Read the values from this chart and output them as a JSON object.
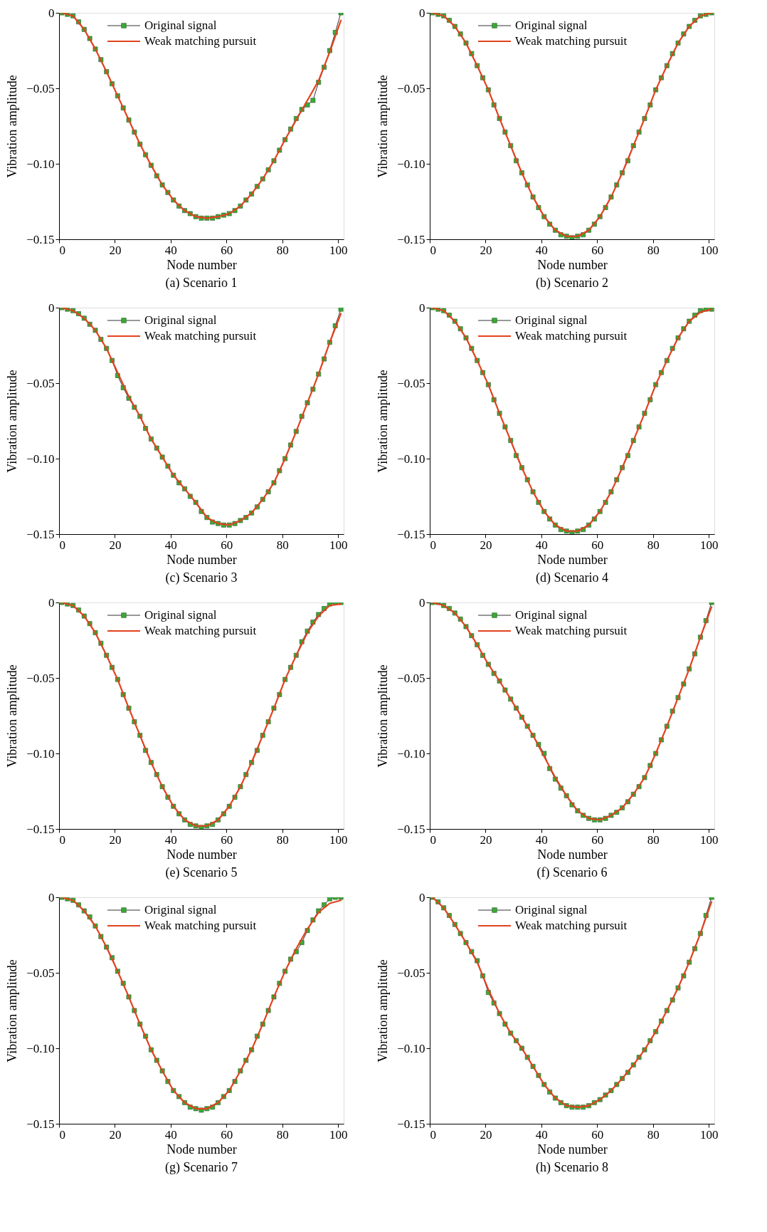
{
  "chart_data": [
    {
      "type": "line",
      "title": "(a) Scenario 1",
      "xlabel": "Node number",
      "ylabel": "Vibration amplitude",
      "xlim": [
        0,
        102
      ],
      "xticks": [
        0,
        20,
        40,
        60,
        80,
        100
      ],
      "ylim": [
        -0.15,
        0
      ],
      "yticks": [
        {
          "value": -0.15,
          "label": "−0.15"
        },
        {
          "value": -0.1,
          "label": "−0.10"
        },
        {
          "value": -0.05,
          "label": "−0.05"
        },
        {
          "value": 0,
          "label": "0"
        }
      ],
      "legend": "top",
      "grid": false,
      "marker": "square",
      "series": [
        {
          "name": "Original signal",
          "color": "#3aaa35",
          "x": [
            1,
            3,
            5,
            7,
            9,
            11,
            13,
            15,
            17,
            19,
            21,
            23,
            25,
            27,
            29,
            31,
            33,
            35,
            37,
            39,
            41,
            43,
            45,
            47,
            49,
            51,
            53,
            55,
            57,
            59,
            61,
            63,
            65,
            67,
            69,
            71,
            73,
            75,
            77,
            79,
            81,
            83,
            85,
            87,
            89,
            91,
            93,
            95,
            97,
            99,
            101
          ],
          "values": [
            0,
            -0.001,
            -0.002,
            -0.006,
            -0.011,
            -0.017,
            -0.024,
            -0.031,
            -0.039,
            -0.047,
            -0.055,
            -0.063,
            -0.071,
            -0.079,
            -0.087,
            -0.094,
            -0.101,
            -0.108,
            -0.114,
            -0.119,
            -0.124,
            -0.128,
            -0.131,
            -0.133,
            -0.135,
            -0.136,
            -0.136,
            -0.136,
            -0.135,
            -0.134,
            -0.133,
            -0.131,
            -0.128,
            -0.124,
            -0.12,
            -0.115,
            -0.11,
            -0.104,
            -0.098,
            -0.091,
            -0.084,
            -0.077,
            -0.07,
            -0.064,
            -0.061,
            -0.058,
            -0.046,
            -0.036,
            -0.025,
            -0.013,
            0
          ]
        },
        {
          "name": "Weak matching pursuit",
          "color": "#e2431e",
          "marker": "none",
          "x": [
            1,
            5,
            9,
            13,
            17,
            21,
            25,
            29,
            33,
            37,
            41,
            45,
            49,
            53,
            57,
            61,
            65,
            69,
            73,
            77,
            81,
            85,
            89,
            93,
            97,
            101
          ],
          "values": [
            0,
            -0.002,
            -0.011,
            -0.024,
            -0.039,
            -0.055,
            -0.071,
            -0.087,
            -0.101,
            -0.114,
            -0.124,
            -0.131,
            -0.135,
            -0.136,
            -0.135,
            -0.133,
            -0.128,
            -0.12,
            -0.11,
            -0.098,
            -0.084,
            -0.071,
            -0.058,
            -0.045,
            -0.026,
            -0.005
          ]
        }
      ]
    },
    {
      "type": "line",
      "title": "(b) Scenario 2",
      "xlabel": "Node number",
      "ylabel": "Vibration amplitude",
      "xlim": [
        0,
        102
      ],
      "xticks": [
        0,
        20,
        40,
        60,
        80,
        100
      ],
      "ylim": [
        -0.15,
        0
      ],
      "yticks": [
        {
          "value": -0.15,
          "label": "−0.15"
        },
        {
          "value": -0.1,
          "label": "−0.10"
        },
        {
          "value": -0.05,
          "label": "−0.05"
        },
        {
          "value": 0,
          "label": "0"
        }
      ],
      "legend": "top",
      "grid": false,
      "marker": "square",
      "series": [
        {
          "name": "Original signal",
          "color": "#3aaa35",
          "x": [
            1,
            3,
            5,
            7,
            9,
            11,
            13,
            15,
            17,
            19,
            21,
            23,
            25,
            27,
            29,
            31,
            33,
            35,
            37,
            39,
            41,
            43,
            45,
            47,
            49,
            51,
            53,
            55,
            57,
            59,
            61,
            63,
            65,
            67,
            69,
            71,
            73,
            75,
            77,
            79,
            81,
            83,
            85,
            87,
            89,
            91,
            93,
            95,
            97,
            99,
            101
          ],
          "values": [
            0,
            -0.001,
            -0.002,
            -0.005,
            -0.009,
            -0.014,
            -0.02,
            -0.027,
            -0.035,
            -0.043,
            -0.051,
            -0.061,
            -0.07,
            -0.079,
            -0.088,
            -0.098,
            -0.106,
            -0.114,
            -0.122,
            -0.129,
            -0.135,
            -0.14,
            -0.144,
            -0.147,
            -0.148,
            -0.149,
            -0.148,
            -0.147,
            -0.144,
            -0.14,
            -0.135,
            -0.129,
            -0.122,
            -0.114,
            -0.106,
            -0.098,
            -0.088,
            -0.079,
            -0.07,
            -0.061,
            -0.051,
            -0.043,
            -0.035,
            -0.027,
            -0.02,
            -0.014,
            -0.009,
            -0.005,
            -0.002,
            -0.001,
            0
          ]
        },
        {
          "name": "Weak matching pursuit",
          "color": "#e2431e",
          "marker": "none",
          "x": [
            1,
            5,
            9,
            13,
            17,
            21,
            25,
            29,
            33,
            37,
            41,
            45,
            49,
            53,
            57,
            61,
            65,
            69,
            73,
            77,
            81,
            85,
            89,
            93,
            97,
            101
          ],
          "values": [
            0,
            -0.002,
            -0.009,
            -0.02,
            -0.035,
            -0.051,
            -0.07,
            -0.088,
            -0.106,
            -0.122,
            -0.135,
            -0.144,
            -0.148,
            -0.148,
            -0.144,
            -0.135,
            -0.122,
            -0.106,
            -0.088,
            -0.07,
            -0.051,
            -0.035,
            -0.02,
            -0.009,
            -0.002,
            0
          ]
        }
      ]
    },
    {
      "type": "line",
      "title": "(c) Scenario 3",
      "xlabel": "Node number",
      "ylabel": "Vibration amplitude",
      "xlim": [
        0,
        102
      ],
      "xticks": [
        0,
        20,
        40,
        60,
        80,
        100
      ],
      "ylim": [
        -0.15,
        0
      ],
      "yticks": [
        {
          "value": -0.15,
          "label": "−0.15"
        },
        {
          "value": -0.1,
          "label": "−0.10"
        },
        {
          "value": -0.05,
          "label": "−0.05"
        },
        {
          "value": 0,
          "label": "0"
        }
      ],
      "legend": "top",
      "grid": false,
      "marker": "square",
      "series": [
        {
          "name": "Original signal",
          "color": "#3aaa35",
          "x": [
            1,
            3,
            5,
            7,
            9,
            11,
            13,
            15,
            17,
            19,
            21,
            23,
            25,
            27,
            29,
            31,
            33,
            35,
            37,
            39,
            41,
            43,
            45,
            47,
            49,
            51,
            53,
            55,
            57,
            59,
            61,
            63,
            65,
            67,
            69,
            71,
            73,
            75,
            77,
            79,
            81,
            83,
            85,
            87,
            89,
            91,
            93,
            95,
            97,
            99,
            101
          ],
          "values": [
            0,
            -0.001,
            -0.002,
            -0.004,
            -0.007,
            -0.011,
            -0.015,
            -0.021,
            -0.027,
            -0.035,
            -0.045,
            -0.053,
            -0.06,
            -0.066,
            -0.072,
            -0.08,
            -0.087,
            -0.093,
            -0.099,
            -0.105,
            -0.111,
            -0.116,
            -0.12,
            -0.125,
            -0.129,
            -0.135,
            -0.139,
            -0.142,
            -0.143,
            -0.144,
            -0.144,
            -0.143,
            -0.141,
            -0.139,
            -0.136,
            -0.132,
            -0.127,
            -0.122,
            -0.116,
            -0.108,
            -0.1,
            -0.091,
            -0.082,
            -0.072,
            -0.063,
            -0.054,
            -0.044,
            -0.034,
            -0.023,
            -0.012,
            -0.001
          ]
        },
        {
          "name": "Weak matching pursuit",
          "color": "#e2431e",
          "marker": "none",
          "x": [
            1,
            5,
            9,
            13,
            17,
            21,
            25,
            29,
            33,
            37,
            41,
            45,
            49,
            53,
            57,
            61,
            65,
            69,
            73,
            77,
            81,
            85,
            89,
            93,
            97,
            101
          ],
          "values": [
            0,
            -0.002,
            -0.007,
            -0.015,
            -0.027,
            -0.043,
            -0.059,
            -0.072,
            -0.087,
            -0.099,
            -0.111,
            -0.12,
            -0.129,
            -0.139,
            -0.143,
            -0.144,
            -0.141,
            -0.136,
            -0.127,
            -0.116,
            -0.1,
            -0.082,
            -0.063,
            -0.044,
            -0.023,
            -0.004
          ]
        }
      ]
    },
    {
      "type": "line",
      "title": "(d) Scenario 4",
      "xlabel": "Node number",
      "ylabel": "Vibration amplitude",
      "xlim": [
        0,
        102
      ],
      "xticks": [
        0,
        20,
        40,
        60,
        80,
        100
      ],
      "ylim": [
        -0.15,
        0
      ],
      "yticks": [
        {
          "value": -0.15,
          "label": "−0.15"
        },
        {
          "value": -0.1,
          "label": "−0.10"
        },
        {
          "value": -0.05,
          "label": "−0.05"
        },
        {
          "value": 0,
          "label": "0"
        }
      ],
      "legend": "top",
      "grid": false,
      "marker": "square",
      "series": [
        {
          "name": "Original signal",
          "color": "#3aaa35",
          "x": [
            1,
            3,
            5,
            7,
            9,
            11,
            13,
            15,
            17,
            19,
            21,
            23,
            25,
            27,
            29,
            31,
            33,
            35,
            37,
            39,
            41,
            43,
            45,
            47,
            49,
            51,
            53,
            55,
            57,
            59,
            61,
            63,
            65,
            67,
            69,
            71,
            73,
            75,
            77,
            79,
            81,
            83,
            85,
            87,
            89,
            91,
            93,
            95,
            97,
            99,
            101
          ],
          "values": [
            0,
            -0.001,
            -0.002,
            -0.005,
            -0.009,
            -0.014,
            -0.02,
            -0.027,
            -0.035,
            -0.043,
            -0.051,
            -0.061,
            -0.07,
            -0.079,
            -0.088,
            -0.098,
            -0.106,
            -0.114,
            -0.122,
            -0.129,
            -0.135,
            -0.14,
            -0.144,
            -0.147,
            -0.148,
            -0.149,
            -0.148,
            -0.147,
            -0.144,
            -0.14,
            -0.135,
            -0.129,
            -0.122,
            -0.114,
            -0.106,
            -0.098,
            -0.088,
            -0.079,
            -0.07,
            -0.061,
            -0.051,
            -0.043,
            -0.035,
            -0.027,
            -0.02,
            -0.014,
            -0.009,
            -0.005,
            -0.002,
            -0.001,
            -0.001
          ]
        },
        {
          "name": "Weak matching pursuit",
          "color": "#e2431e",
          "marker": "none",
          "x": [
            1,
            5,
            9,
            13,
            17,
            21,
            25,
            29,
            33,
            37,
            41,
            45,
            49,
            53,
            57,
            61,
            65,
            69,
            73,
            77,
            81,
            85,
            89,
            93,
            97,
            101
          ],
          "values": [
            0,
            -0.002,
            -0.009,
            -0.02,
            -0.035,
            -0.051,
            -0.07,
            -0.088,
            -0.106,
            -0.122,
            -0.135,
            -0.144,
            -0.148,
            -0.148,
            -0.144,
            -0.135,
            -0.122,
            -0.106,
            -0.088,
            -0.07,
            -0.051,
            -0.035,
            -0.02,
            -0.009,
            -0.003,
            -0.001
          ]
        }
      ]
    },
    {
      "type": "line",
      "title": "(e) Scenario 5",
      "xlabel": "Node number",
      "ylabel": "Vibration amplitude",
      "xlim": [
        0,
        102
      ],
      "xticks": [
        0,
        20,
        40,
        60,
        80,
        100
      ],
      "ylim": [
        -0.15,
        0
      ],
      "yticks": [
        {
          "value": -0.15,
          "label": "−0.15"
        },
        {
          "value": -0.1,
          "label": "−0.10"
        },
        {
          "value": -0.05,
          "label": "−0.05"
        },
        {
          "value": 0,
          "label": "0"
        }
      ],
      "legend": "top",
      "grid": false,
      "marker": "square",
      "series": [
        {
          "name": "Original signal",
          "color": "#3aaa35",
          "x": [
            1,
            3,
            5,
            7,
            9,
            11,
            13,
            15,
            17,
            19,
            21,
            23,
            25,
            27,
            29,
            31,
            33,
            35,
            37,
            39,
            41,
            43,
            45,
            47,
            49,
            51,
            53,
            55,
            57,
            59,
            61,
            63,
            65,
            67,
            69,
            71,
            73,
            75,
            77,
            79,
            81,
            83,
            85,
            87,
            89,
            91,
            93,
            95,
            97,
            99,
            101
          ],
          "values": [
            0,
            -0.001,
            -0.002,
            -0.005,
            -0.009,
            -0.014,
            -0.02,
            -0.027,
            -0.035,
            -0.043,
            -0.051,
            -0.061,
            -0.07,
            -0.079,
            -0.088,
            -0.098,
            -0.106,
            -0.114,
            -0.122,
            -0.129,
            -0.135,
            -0.14,
            -0.144,
            -0.147,
            -0.148,
            -0.149,
            -0.148,
            -0.147,
            -0.144,
            -0.14,
            -0.135,
            -0.129,
            -0.122,
            -0.114,
            -0.106,
            -0.098,
            -0.088,
            -0.079,
            -0.07,
            -0.061,
            -0.051,
            -0.043,
            -0.035,
            -0.026,
            -0.019,
            -0.013,
            -0.008,
            -0.004,
            -0.001,
            0,
            0
          ]
        },
        {
          "name": "Weak matching pursuit",
          "color": "#e2431e",
          "marker": "none",
          "x": [
            1,
            5,
            9,
            13,
            17,
            21,
            25,
            29,
            33,
            37,
            41,
            45,
            49,
            53,
            57,
            61,
            65,
            69,
            73,
            77,
            81,
            85,
            89,
            93,
            97,
            101
          ],
          "values": [
            0,
            -0.002,
            -0.009,
            -0.02,
            -0.035,
            -0.051,
            -0.07,
            -0.088,
            -0.106,
            -0.122,
            -0.135,
            -0.144,
            -0.148,
            -0.148,
            -0.144,
            -0.135,
            -0.122,
            -0.106,
            -0.088,
            -0.07,
            -0.051,
            -0.035,
            -0.02,
            -0.009,
            -0.002,
            -0.001
          ]
        }
      ]
    },
    {
      "type": "line",
      "title": "(f) Scenario 6",
      "xlabel": "Node number",
      "ylabel": "Vibration amplitude",
      "xlim": [
        0,
        102
      ],
      "xticks": [
        0,
        20,
        40,
        60,
        80,
        100
      ],
      "ylim": [
        -0.15,
        0
      ],
      "yticks": [
        {
          "value": -0.15,
          "label": "−0.15"
        },
        {
          "value": -0.1,
          "label": "−0.10"
        },
        {
          "value": -0.05,
          "label": "−0.05"
        },
        {
          "value": 0,
          "label": "0"
        }
      ],
      "legend": "top",
      "grid": false,
      "marker": "square",
      "series": [
        {
          "name": "Original signal",
          "color": "#3aaa35",
          "x": [
            1,
            3,
            5,
            7,
            9,
            11,
            13,
            15,
            17,
            19,
            21,
            23,
            25,
            27,
            29,
            31,
            33,
            35,
            37,
            39,
            41,
            43,
            45,
            47,
            49,
            51,
            53,
            55,
            57,
            59,
            61,
            63,
            65,
            67,
            69,
            71,
            73,
            75,
            77,
            79,
            81,
            83,
            85,
            87,
            89,
            91,
            93,
            95,
            97,
            99,
            101
          ],
          "values": [
            0,
            0,
            -0.002,
            -0.004,
            -0.007,
            -0.011,
            -0.016,
            -0.022,
            -0.028,
            -0.035,
            -0.041,
            -0.047,
            -0.052,
            -0.058,
            -0.064,
            -0.07,
            -0.076,
            -0.082,
            -0.088,
            -0.094,
            -0.1,
            -0.11,
            -0.117,
            -0.123,
            -0.128,
            -0.134,
            -0.138,
            -0.141,
            -0.143,
            -0.144,
            -0.144,
            -0.143,
            -0.141,
            -0.139,
            -0.136,
            -0.132,
            -0.127,
            -0.122,
            -0.116,
            -0.108,
            -0.1,
            -0.091,
            -0.082,
            -0.072,
            -0.063,
            -0.054,
            -0.044,
            -0.034,
            -0.023,
            -0.012,
            0
          ]
        },
        {
          "name": "Weak matching pursuit",
          "color": "#e2431e",
          "marker": "none",
          "x": [
            1,
            5,
            9,
            13,
            17,
            21,
            25,
            29,
            33,
            37,
            41,
            45,
            49,
            53,
            57,
            61,
            65,
            69,
            73,
            77,
            81,
            85,
            89,
            93,
            97,
            101
          ],
          "values": [
            0,
            -0.002,
            -0.007,
            -0.016,
            -0.028,
            -0.041,
            -0.052,
            -0.064,
            -0.076,
            -0.088,
            -0.102,
            -0.116,
            -0.128,
            -0.138,
            -0.143,
            -0.144,
            -0.141,
            -0.136,
            -0.127,
            -0.116,
            -0.1,
            -0.082,
            -0.063,
            -0.044,
            -0.023,
            -0.003
          ]
        }
      ]
    },
    {
      "type": "line",
      "title": "(g) Scenario 7",
      "xlabel": "Node number",
      "ylabel": "Vibration amplitude",
      "xlim": [
        0,
        102
      ],
      "xticks": [
        0,
        20,
        40,
        60,
        80,
        100
      ],
      "ylim": [
        -0.15,
        0
      ],
      "yticks": [
        {
          "value": -0.15,
          "label": "−0.15"
        },
        {
          "value": -0.1,
          "label": "−0.10"
        },
        {
          "value": -0.05,
          "label": "−0.05"
        },
        {
          "value": 0,
          "label": "0"
        }
      ],
      "legend": "top",
      "grid": false,
      "marker": "square",
      "series": [
        {
          "name": "Original signal",
          "color": "#3aaa35",
          "x": [
            1,
            3,
            5,
            7,
            9,
            11,
            13,
            15,
            17,
            19,
            21,
            23,
            25,
            27,
            29,
            31,
            33,
            35,
            37,
            39,
            41,
            43,
            45,
            47,
            49,
            51,
            53,
            55,
            57,
            59,
            61,
            63,
            65,
            67,
            69,
            71,
            73,
            75,
            77,
            79,
            81,
            83,
            85,
            87,
            89,
            91,
            93,
            95,
            97,
            99,
            101
          ],
          "values": [
            0,
            -0.001,
            -0.002,
            -0.005,
            -0.009,
            -0.013,
            -0.019,
            -0.026,
            -0.033,
            -0.04,
            -0.049,
            -0.057,
            -0.066,
            -0.075,
            -0.084,
            -0.092,
            -0.101,
            -0.108,
            -0.115,
            -0.122,
            -0.128,
            -0.132,
            -0.136,
            -0.139,
            -0.14,
            -0.141,
            -0.14,
            -0.139,
            -0.136,
            -0.132,
            -0.128,
            -0.122,
            -0.115,
            -0.108,
            -0.101,
            -0.092,
            -0.084,
            -0.075,
            -0.066,
            -0.057,
            -0.049,
            -0.041,
            -0.036,
            -0.03,
            -0.022,
            -0.015,
            -0.009,
            -0.005,
            -0.001,
            0,
            0
          ]
        },
        {
          "name": "Weak matching pursuit",
          "color": "#e2431e",
          "marker": "none",
          "x": [
            1,
            5,
            9,
            13,
            17,
            21,
            25,
            29,
            33,
            37,
            41,
            45,
            49,
            53,
            57,
            61,
            65,
            69,
            73,
            77,
            81,
            85,
            89,
            93,
            97,
            101
          ],
          "values": [
            0,
            -0.002,
            -0.009,
            -0.019,
            -0.033,
            -0.049,
            -0.066,
            -0.084,
            -0.101,
            -0.115,
            -0.128,
            -0.136,
            -0.14,
            -0.14,
            -0.136,
            -0.128,
            -0.115,
            -0.101,
            -0.084,
            -0.066,
            -0.049,
            -0.034,
            -0.021,
            -0.01,
            -0.004,
            -0.002
          ]
        }
      ]
    },
    {
      "type": "line",
      "title": "(h) Scenario 8",
      "xlabel": "Node number",
      "ylabel": "Vibration amplitude",
      "xlim": [
        0,
        102
      ],
      "xticks": [
        0,
        20,
        40,
        60,
        80,
        100
      ],
      "ylim": [
        -0.15,
        0
      ],
      "yticks": [
        {
          "value": -0.15,
          "label": "−0.15"
        },
        {
          "value": -0.1,
          "label": "−0.10"
        },
        {
          "value": -0.05,
          "label": "−0.05"
        },
        {
          "value": 0,
          "label": "0"
        }
      ],
      "legend": "top",
      "grid": false,
      "marker": "square",
      "series": [
        {
          "name": "Original signal",
          "color": "#3aaa35",
          "x": [
            1,
            3,
            5,
            7,
            9,
            11,
            13,
            15,
            17,
            19,
            21,
            23,
            25,
            27,
            29,
            31,
            33,
            35,
            37,
            39,
            41,
            43,
            45,
            47,
            49,
            51,
            53,
            55,
            57,
            59,
            61,
            63,
            65,
            67,
            69,
            71,
            73,
            75,
            77,
            79,
            81,
            83,
            85,
            87,
            89,
            91,
            93,
            95,
            97,
            99,
            101
          ],
          "values": [
            0,
            -0.003,
            -0.007,
            -0.012,
            -0.018,
            -0.024,
            -0.03,
            -0.036,
            -0.042,
            -0.052,
            -0.063,
            -0.07,
            -0.077,
            -0.084,
            -0.09,
            -0.095,
            -0.1,
            -0.106,
            -0.112,
            -0.118,
            -0.124,
            -0.129,
            -0.133,
            -0.136,
            -0.138,
            -0.139,
            -0.139,
            -0.139,
            -0.138,
            -0.136,
            -0.134,
            -0.131,
            -0.128,
            -0.124,
            -0.12,
            -0.116,
            -0.111,
            -0.106,
            -0.101,
            -0.095,
            -0.089,
            -0.082,
            -0.075,
            -0.068,
            -0.06,
            -0.052,
            -0.043,
            -0.034,
            -0.024,
            -0.012,
            0
          ]
        },
        {
          "name": "Weak matching pursuit",
          "color": "#e2431e",
          "marker": "none",
          "x": [
            1,
            5,
            9,
            13,
            17,
            21,
            25,
            29,
            33,
            37,
            41,
            45,
            49,
            53,
            57,
            61,
            65,
            69,
            73,
            77,
            81,
            85,
            89,
            93,
            97,
            101
          ],
          "values": [
            0,
            -0.007,
            -0.018,
            -0.03,
            -0.043,
            -0.061,
            -0.077,
            -0.09,
            -0.1,
            -0.112,
            -0.124,
            -0.133,
            -0.138,
            -0.139,
            -0.138,
            -0.134,
            -0.128,
            -0.12,
            -0.111,
            -0.101,
            -0.089,
            -0.075,
            -0.06,
            -0.043,
            -0.024,
            -0.003
          ]
        }
      ]
    }
  ]
}
